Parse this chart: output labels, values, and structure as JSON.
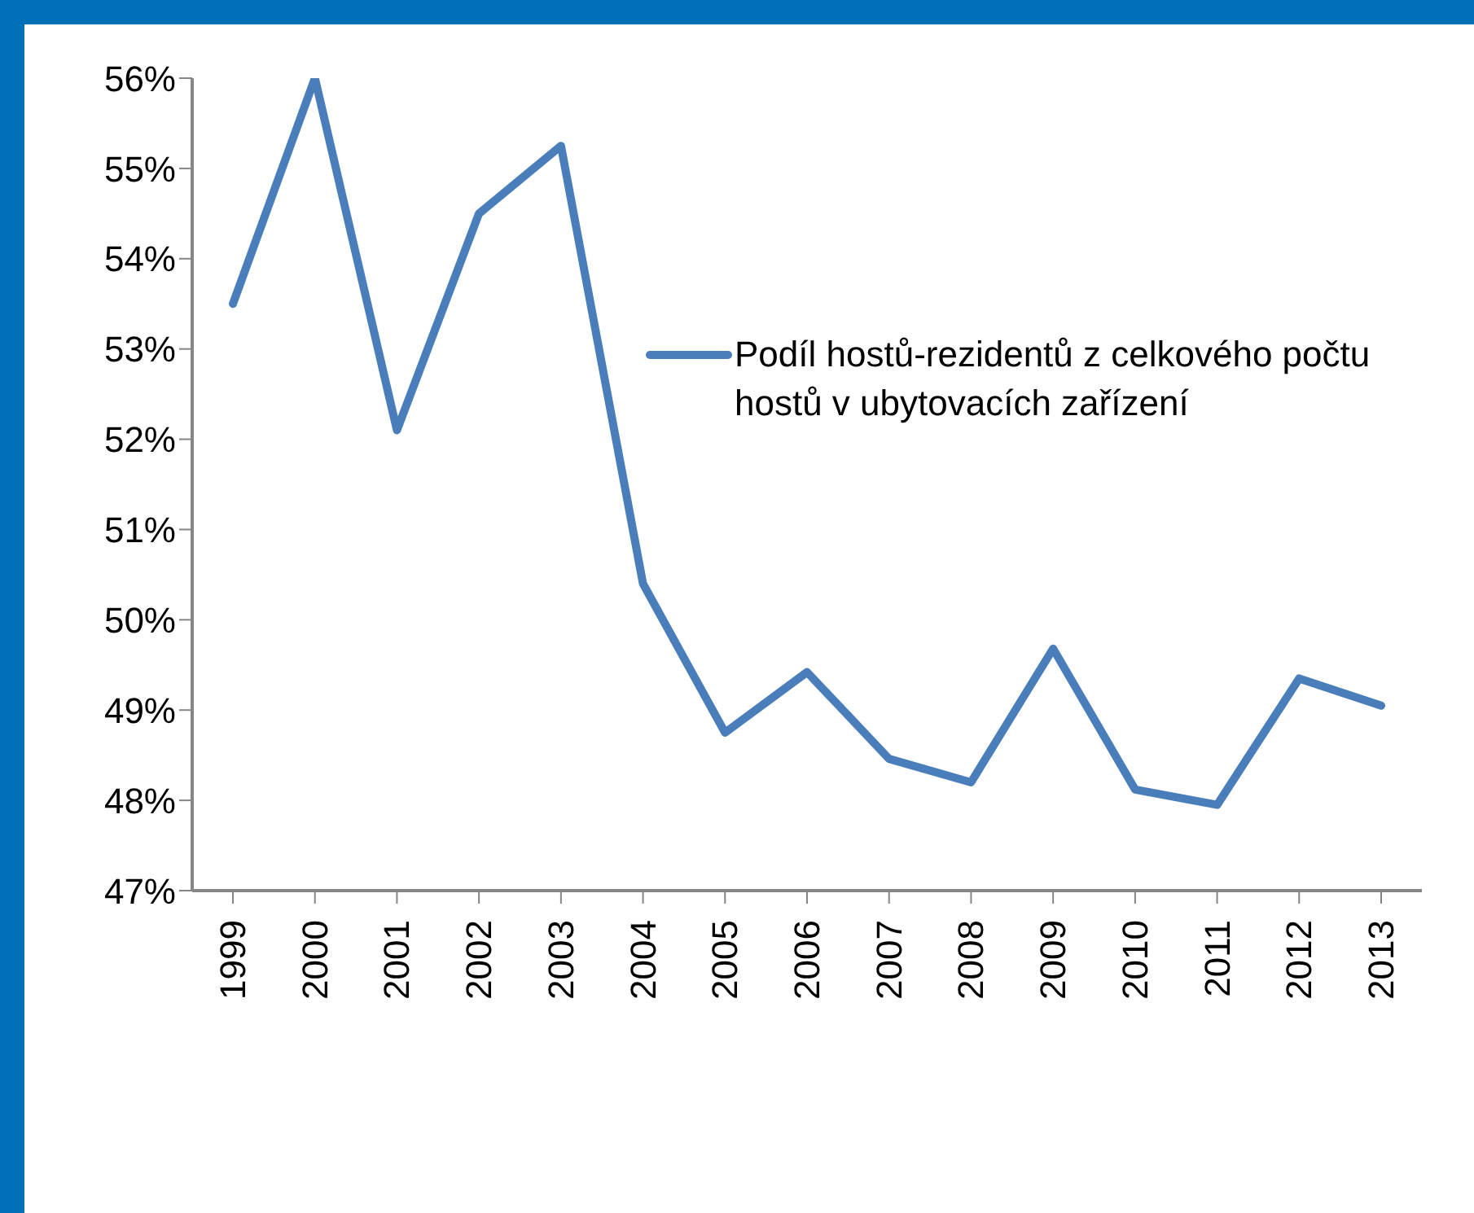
{
  "chart_data": {
    "type": "line",
    "categories": [
      "1999",
      "2000",
      "2001",
      "2002",
      "2003",
      "2004",
      "2005",
      "2006",
      "2007",
      "2008",
      "2009",
      "2010",
      "2011",
      "2012",
      "2013"
    ],
    "series": [
      {
        "name": "Podíl hostů-rezidentů z celkového počtu hostů v ubytovacích zařízení",
        "color": "#4a7ebb",
        "values": [
          53.5,
          56.0,
          52.1,
          54.5,
          55.25,
          50.4,
          48.75,
          49.42,
          48.46,
          48.2,
          49.68,
          48.12,
          47.95,
          49.35,
          49.05
        ]
      }
    ],
    "ylim": [
      47,
      56
    ],
    "yticks": [
      {
        "value": 47,
        "label": "47%"
      },
      {
        "value": 48,
        "label": "48%"
      },
      {
        "value": 49,
        "label": "49%"
      },
      {
        "value": 50,
        "label": "50%"
      },
      {
        "value": 51,
        "label": "51%"
      },
      {
        "value": 52,
        "label": "52%"
      },
      {
        "value": 53,
        "label": "53%"
      },
      {
        "value": 54,
        "label": "54%"
      },
      {
        "value": 55,
        "label": "55%"
      },
      {
        "value": 56,
        "label": "56%"
      }
    ],
    "grid": false,
    "legend": "right",
    "marker": "none",
    "line_style": "solid"
  }
}
